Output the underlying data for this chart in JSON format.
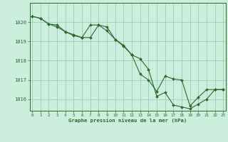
{
  "background_color": "#cceedd",
  "grid_color": "#99ccbb",
  "line_color": "#2d6a2d",
  "ylim": [
    1015.4,
    1021.0
  ],
  "xlim": [
    -0.3,
    23.3
  ],
  "yticks": [
    1016,
    1017,
    1018,
    1019,
    1020
  ],
  "xticks": [
    0,
    1,
    2,
    3,
    4,
    5,
    6,
    7,
    8,
    9,
    10,
    11,
    12,
    13,
    14,
    15,
    16,
    17,
    18,
    19,
    20,
    21,
    22,
    23
  ],
  "xlabel": "Graphe pression niveau de la mer (hPa)",
  "series": [
    [
      1020.3,
      1020.2,
      1019.9,
      1019.85,
      1019.5,
      1019.35,
      1019.2,
      1019.2,
      1019.85,
      1019.75,
      1019.1,
      1018.8,
      1018.3,
      1018.1,
      1017.55,
      1016.15,
      1016.35,
      1015.7,
      1015.6,
      1015.5,
      1015.75,
      1016.0,
      1016.5,
      1016.5
    ],
    [
      1020.3,
      1020.2,
      1019.9,
      1019.75,
      1019.5,
      1019.3,
      1019.2,
      1019.85,
      1019.85,
      1019.55,
      1019.1,
      1018.75,
      1018.3,
      1017.3,
      1017.0,
      1016.4,
      1017.2,
      1017.05,
      1017.0,
      1015.65,
      1016.1,
      1016.5,
      1016.5,
      1016.5
    ]
  ]
}
